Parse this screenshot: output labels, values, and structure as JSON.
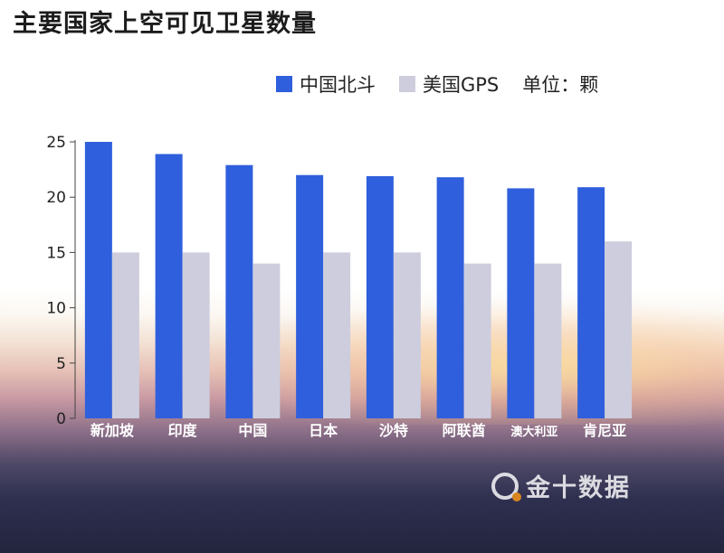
{
  "title": "主要国家上空可见卫星数量",
  "legend": {
    "unit": "单位：颗"
  },
  "colors": {
    "beidou": "#2f5fdc",
    "gps": "#cdcddd"
  },
  "watermark": "金十数据",
  "chart_data": {
    "type": "bar",
    "title": "主要国家上空可见卫星数量",
    "categories": [
      "新加坡",
      "印度",
      "中国",
      "日本",
      "沙特",
      "阿联酋",
      "澳大利亚",
      "肯尼亚"
    ],
    "series": [
      {
        "name": "中国北斗",
        "values": [
          25,
          23.9,
          22.9,
          22,
          21.9,
          21.8,
          20.8,
          20.9
        ]
      },
      {
        "name": "美国GPS",
        "values": [
          15,
          15,
          14,
          15,
          15,
          14,
          14,
          16
        ]
      }
    ],
    "ylim": [
      0,
      25
    ],
    "yticks": [
      0,
      5,
      10,
      15,
      20,
      25
    ],
    "xlabel": "",
    "ylabel": "",
    "grid": false,
    "legend_position": "top-right"
  }
}
